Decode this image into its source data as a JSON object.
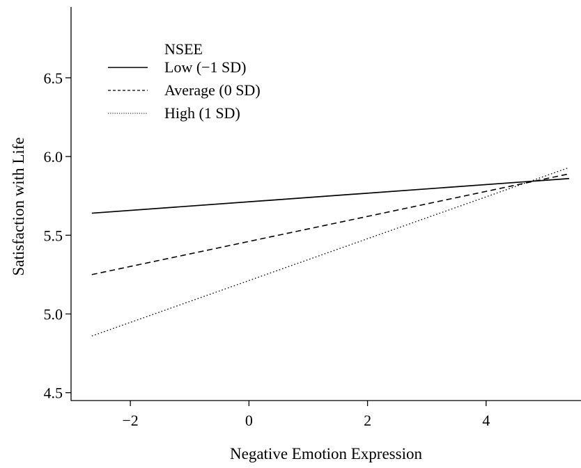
{
  "chart_data": {
    "type": "line",
    "xlabel": "Negative Emotion Expression",
    "ylabel": "Satisfaction with Life",
    "xlim": [
      -3.0,
      5.6
    ],
    "ylim": [
      4.45,
      6.95
    ],
    "xticks": [
      -2,
      0,
      2,
      4
    ],
    "xtick_labels": [
      "−2",
      "0",
      "2",
      "4"
    ],
    "yticks": [
      4.5,
      5.0,
      5.5,
      6.0,
      6.5
    ],
    "ytick_labels": [
      "4.5",
      "5.0",
      "5.5",
      "6.0",
      "6.5"
    ],
    "legend_title": "NSEE",
    "legend_position": "top-left",
    "grid": false,
    "series": [
      {
        "name": "Low (−1 SD)",
        "style": "solid",
        "color": "#000000",
        "x": [
          -2.65,
          5.4
        ],
        "y": [
          5.64,
          5.86
        ]
      },
      {
        "name": "Average (0 SD)",
        "style": "dashed",
        "color": "#000000",
        "x": [
          -2.65,
          5.4
        ],
        "y": [
          5.25,
          5.89
        ]
      },
      {
        "name": "High (1 SD)",
        "style": "dotted",
        "color": "#000000",
        "x": [
          -2.65,
          5.4
        ],
        "y": [
          4.86,
          5.93
        ]
      }
    ]
  }
}
